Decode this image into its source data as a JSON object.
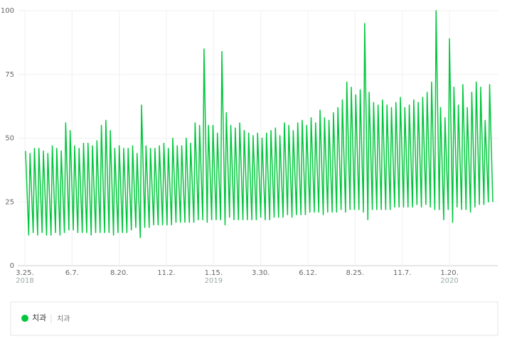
{
  "chart_data": {
    "type": "line",
    "x": [
      "2018-03-26",
      "2018-03-31",
      "2018-04-02",
      "2018-04-07",
      "2018-04-09",
      "2018-04-14",
      "2018-04-16",
      "2018-04-21",
      "2018-04-23",
      "2018-04-28",
      "2018-04-30",
      "2018-05-05",
      "2018-05-07",
      "2018-05-12",
      "2018-05-14",
      "2018-05-19",
      "2018-05-21",
      "2018-05-26",
      "2018-05-28",
      "2018-06-02",
      "2018-06-04",
      "2018-06-09",
      "2018-06-11",
      "2018-06-16",
      "2018-06-18",
      "2018-06-23",
      "2018-06-25",
      "2018-06-30",
      "2018-07-02",
      "2018-07-07",
      "2018-07-09",
      "2018-07-14",
      "2018-07-16",
      "2018-07-21",
      "2018-07-23",
      "2018-07-28",
      "2018-07-30",
      "2018-08-04",
      "2018-08-06",
      "2018-08-11",
      "2018-08-13",
      "2018-08-18",
      "2018-08-20",
      "2018-08-25",
      "2018-08-27",
      "2018-09-01",
      "2018-09-03",
      "2018-09-08",
      "2018-09-10",
      "2018-09-15",
      "2018-09-17",
      "2018-09-22",
      "2018-09-24",
      "2018-09-29",
      "2018-10-01",
      "2018-10-06",
      "2018-10-08",
      "2018-10-13",
      "2018-10-15",
      "2018-10-20",
      "2018-10-22",
      "2018-10-27",
      "2018-10-29",
      "2018-11-03",
      "2018-11-05",
      "2018-11-10",
      "2018-11-12",
      "2018-11-17",
      "2018-11-19",
      "2018-11-24",
      "2018-11-26",
      "2018-12-01",
      "2018-12-03",
      "2018-12-08",
      "2018-12-10",
      "2018-12-15",
      "2018-12-17",
      "2018-12-22",
      "2018-12-24",
      "2018-12-29",
      "2018-12-31",
      "2019-01-05",
      "2019-01-07",
      "2019-01-12",
      "2019-01-14",
      "2019-01-19",
      "2019-01-21",
      "2019-01-26",
      "2019-01-28",
      "2019-02-02",
      "2019-02-04",
      "2019-02-09",
      "2019-02-11",
      "2019-02-16",
      "2019-02-18",
      "2019-02-23",
      "2019-02-25",
      "2019-03-02",
      "2019-03-04",
      "2019-03-09",
      "2019-03-11",
      "2019-03-16",
      "2019-03-18",
      "2019-03-23",
      "2019-03-25",
      "2019-03-30",
      "2019-04-01",
      "2019-04-06",
      "2019-04-08",
      "2019-04-13",
      "2019-04-15",
      "2019-04-20",
      "2019-04-22",
      "2019-04-27",
      "2019-04-29",
      "2019-05-04",
      "2019-05-06",
      "2019-05-11",
      "2019-05-13",
      "2019-05-18",
      "2019-05-20",
      "2019-05-25",
      "2019-05-27",
      "2019-06-01",
      "2019-06-03",
      "2019-06-08",
      "2019-06-10",
      "2019-06-15",
      "2019-06-17",
      "2019-06-22",
      "2019-06-24",
      "2019-06-29",
      "2019-07-01",
      "2019-07-06",
      "2019-07-08",
      "2019-07-13",
      "2019-07-15",
      "2019-07-20",
      "2019-07-22",
      "2019-07-27",
      "2019-07-29",
      "2019-08-03",
      "2019-08-05",
      "2019-08-10",
      "2019-08-12",
      "2019-08-17",
      "2019-08-19",
      "2019-08-24",
      "2019-08-26",
      "2019-08-31",
      "2019-09-02",
      "2019-09-07",
      "2019-09-09",
      "2019-09-14",
      "2019-09-16",
      "2019-09-21",
      "2019-09-23",
      "2019-09-28",
      "2019-09-30",
      "2019-10-05",
      "2019-10-07",
      "2019-10-12",
      "2019-10-14",
      "2019-10-19",
      "2019-10-21",
      "2019-10-26",
      "2019-10-28",
      "2019-11-02",
      "2019-11-04",
      "2019-11-09",
      "2019-11-11",
      "2019-11-16",
      "2019-11-18",
      "2019-11-23",
      "2019-11-25",
      "2019-11-30",
      "2019-12-02",
      "2019-12-07",
      "2019-12-09",
      "2019-12-14",
      "2019-12-16",
      "2019-12-21",
      "2019-12-23",
      "2019-12-28",
      "2019-12-30",
      "2020-01-04",
      "2020-01-06",
      "2020-01-11",
      "2020-01-13",
      "2020-01-18",
      "2020-01-20",
      "2020-01-25",
      "2020-01-27",
      "2020-02-01",
      "2020-02-03",
      "2020-02-08",
      "2020-02-10",
      "2020-02-15",
      "2020-02-17",
      "2020-02-22",
      "2020-02-24",
      "2020-02-29",
      "2020-03-02",
      "2020-03-07",
      "2020-03-09",
      "2020-03-14",
      "2020-03-16",
      "2020-03-21",
      "2020-03-23",
      "2020-03-28"
    ],
    "series": [
      {
        "name": "치과",
        "color": "#00c73c",
        "values": [
          45,
          12,
          44,
          13,
          46,
          12,
          46,
          13,
          45,
          12,
          44,
          12,
          47,
          13,
          46,
          12,
          45,
          13,
          56,
          14,
          53,
          14,
          47,
          13,
          46,
          13,
          48,
          13,
          48,
          12,
          47,
          13,
          49,
          13,
          55,
          13,
          57,
          13,
          53,
          12,
          46,
          13,
          47,
          13,
          46,
          13,
          46,
          14,
          47,
          15,
          44,
          11,
          63,
          15,
          47,
          15,
          46,
          16,
          46,
          16,
          47,
          16,
          48,
          16,
          46,
          16,
          50,
          17,
          47,
          17,
          47,
          17,
          50,
          17,
          48,
          17,
          56,
          18,
          55,
          18,
          85,
          17,
          55,
          18,
          55,
          18,
          52,
          18,
          84,
          16,
          60,
          19,
          55,
          18,
          54,
          18,
          56,
          18,
          53,
          18,
          52,
          18,
          51,
          18,
          52,
          19,
          50,
          18,
          52,
          18,
          53,
          19,
          54,
          19,
          51,
          19,
          56,
          20,
          55,
          19,
          53,
          20,
          56,
          20,
          57,
          20,
          55,
          21,
          58,
          21,
          56,
          21,
          61,
          20,
          58,
          21,
          57,
          21,
          60,
          21,
          62,
          22,
          65,
          21,
          72,
          22,
          70,
          22,
          67,
          22,
          69,
          21,
          95,
          18,
          68,
          22,
          64,
          22,
          63,
          22,
          65,
          22,
          63,
          22,
          62,
          23,
          64,
          23,
          66,
          23,
          62,
          23,
          63,
          23,
          65,
          24,
          64,
          23,
          66,
          24,
          68,
          23,
          72,
          22,
          100,
          22,
          62,
          18,
          58,
          22,
          89,
          17,
          70,
          23,
          63,
          22,
          71,
          22,
          62,
          21,
          68,
          23,
          72,
          24,
          70,
          24,
          57,
          25,
          71,
          25
        ]
      }
    ],
    "legend_sublabel": "치과",
    "xlim": [
      "2018-03-25",
      "2020-03-28"
    ],
    "xticks": [
      {
        "value": "2018-03-25",
        "label": "3.25."
      },
      {
        "value": "2018-06-07",
        "label": "6.7."
      },
      {
        "value": "2018-08-20",
        "label": "8.20."
      },
      {
        "value": "2018-11-02",
        "label": "11.2."
      },
      {
        "value": "2019-01-15",
        "label": "1.15."
      },
      {
        "value": "2019-03-30",
        "label": "3.30."
      },
      {
        "value": "2019-06-12",
        "label": "6.12."
      },
      {
        "value": "2019-08-25",
        "label": "8.25."
      },
      {
        "value": "2019-11-07",
        "label": "11.7."
      },
      {
        "value": "2020-01-20",
        "label": "1.20."
      }
    ],
    "x_year_labels": [
      {
        "value": "2018-03-25",
        "label": "2018"
      },
      {
        "value": "2019-01-15",
        "label": "2019"
      },
      {
        "value": "2020-01-20",
        "label": "2020"
      }
    ],
    "ylim": [
      0,
      100
    ],
    "yticks": [
      0,
      25,
      50,
      75,
      100
    ],
    "grid": true
  }
}
